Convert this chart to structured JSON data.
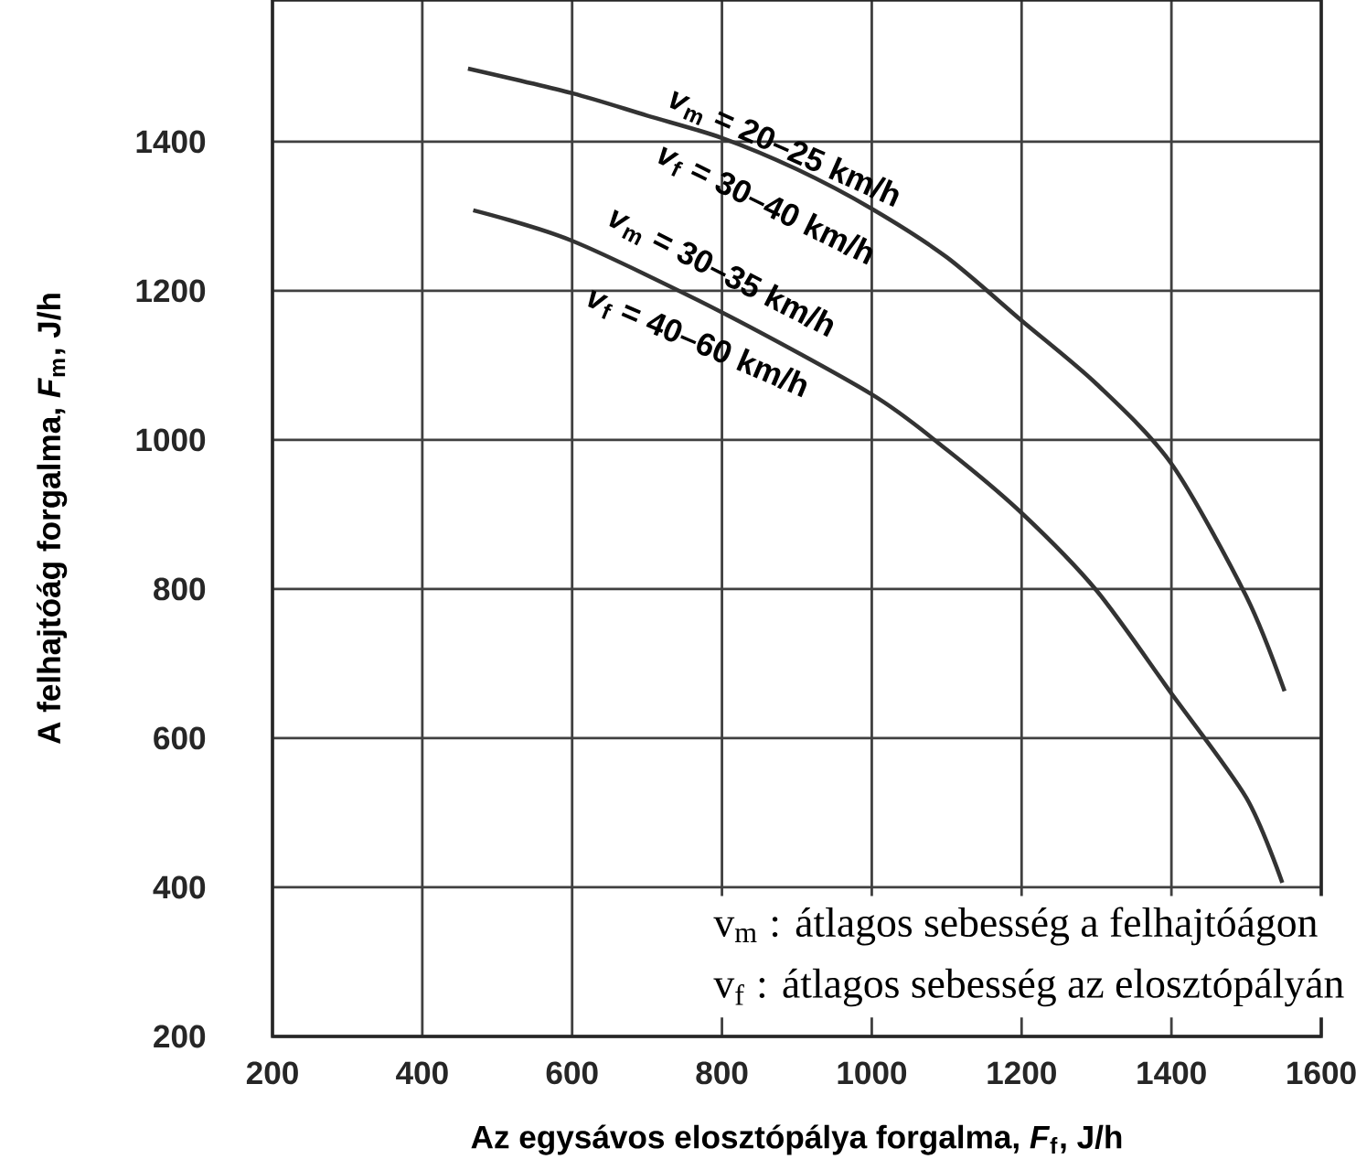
{
  "chart_data": {
    "type": "line",
    "xlabel": "Az egysávos elosztópálya forgalma, *F*$_{f}$, J/h",
    "ylabel": "A felhajtóág forgalma, *F*$_{m}$, J/h",
    "xlim": [
      200,
      1600
    ],
    "ylim": [
      200,
      1590
    ],
    "xticks": [
      200,
      400,
      600,
      800,
      1000,
      1200,
      1400,
      1600
    ],
    "yticks": [
      200,
      400,
      600,
      800,
      1000,
      1200,
      1400
    ],
    "grid": true,
    "series": [
      {
        "color": "#333333",
        "x": [
          461,
          600,
          700,
          800,
          900,
          1000,
          1100,
          1200,
          1300,
          1400,
          1500,
          1551
        ],
        "values": [
          1498,
          1465,
          1435,
          1405,
          1363,
          1310,
          1245,
          1160,
          1075,
          968,
          790,
          663
        ]
      },
      {
        "color": "#333333",
        "x": [
          468,
          600,
          800,
          1000,
          1100,
          1200,
          1300,
          1400,
          1500,
          1548
        ],
        "values": [
          1308,
          1267,
          1171,
          1061,
          987,
          902,
          798,
          660,
          520,
          406
        ]
      }
    ],
    "annotations": [
      "*v*$_{m}$ = 20–25 km/h",
      "*v*$_{f}$ = 30–40 km/h",
      "*v*$_{m}$ = 30–35 km/h",
      "*v*$_{f}$ = 40–60 km/h",
      "v$_{m}$ : átlagos sebesség a felhajtóágon",
      "v$_{f}$ : átlagos sebesség az elosztópályán"
    ]
  }
}
